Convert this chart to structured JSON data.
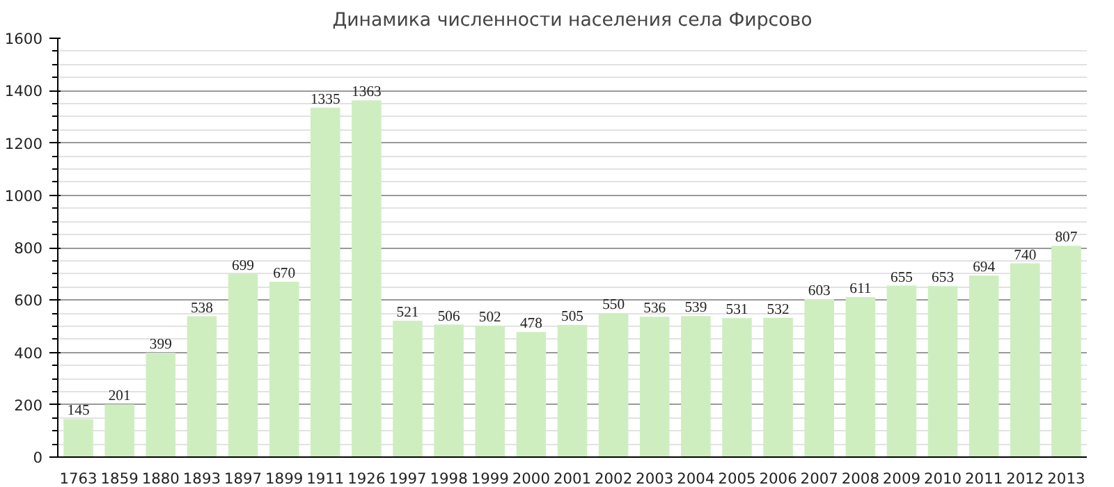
{
  "chart_data": {
    "type": "bar",
    "title": "Динамика численности населения села Фирсово",
    "categories": [
      "1763",
      "1859",
      "1880",
      "1893",
      "1897",
      "1899",
      "1911",
      "1926",
      "1997",
      "1998",
      "1999",
      "2000",
      "2001",
      "2002",
      "2003",
      "2004",
      "2005",
      "2006",
      "2007",
      "2008",
      "2009",
      "2010",
      "2011",
      "2012",
      "2013"
    ],
    "values": [
      145,
      201,
      399,
      538,
      699,
      670,
      1335,
      1363,
      521,
      506,
      502,
      478,
      505,
      550,
      536,
      539,
      531,
      532,
      603,
      611,
      655,
      653,
      694,
      740,
      807
    ],
    "color": "#ceeec0",
    "ylim": [
      0,
      1600
    ],
    "yticks": [
      0,
      200,
      400,
      600,
      800,
      1000,
      1200,
      1400,
      1600
    ],
    "grid": "y",
    "data_labels": true
  }
}
